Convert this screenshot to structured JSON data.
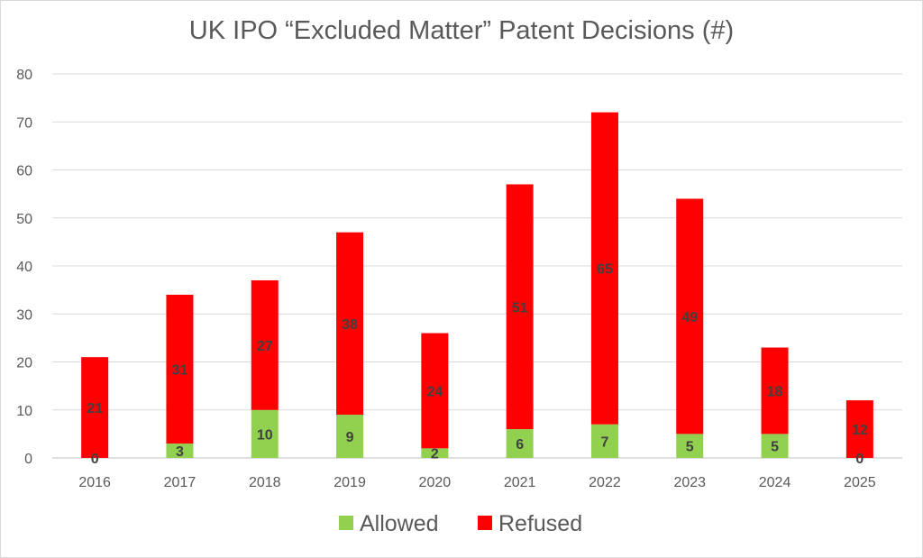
{
  "chart_data": {
    "type": "bar",
    "stacked": true,
    "title": "UK IPO “Excluded Matter” Patent Decisions (#)",
    "categories": [
      "2016",
      "2017",
      "2018",
      "2019",
      "2020",
      "2021",
      "2022",
      "2023",
      "2024",
      "2025"
    ],
    "series": [
      {
        "name": "Allowed",
        "color": "#92d050",
        "values": [
          0,
          3,
          10,
          9,
          2,
          6,
          7,
          5,
          5,
          0
        ]
      },
      {
        "name": "Refused",
        "color": "#ff0000",
        "values": [
          21,
          31,
          27,
          38,
          24,
          51,
          65,
          49,
          18,
          12
        ]
      }
    ],
    "yticks": [
      0,
      10,
      20,
      30,
      40,
      50,
      60,
      70,
      80
    ],
    "ylim": [
      0,
      80
    ],
    "grid": true,
    "legend_position": "bottom"
  }
}
